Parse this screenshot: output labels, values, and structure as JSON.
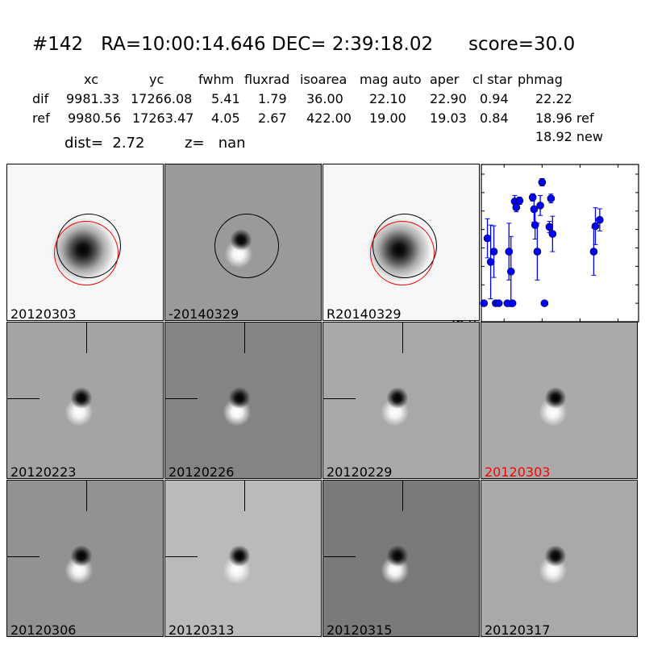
{
  "header": {
    "title": "#142   RA=10:00:14.646 DEC= 2:39:18.02      score=30.0",
    "columns": [
      "xc",
      "yc",
      "fwhm",
      "fluxrad",
      "isoarea",
      "mag auto",
      "aper",
      "cl star",
      "phmag"
    ],
    "rows": [
      {
        "label": "dif",
        "values": [
          "9981.33",
          "17266.08",
          "5.41",
          "1.79",
          "36.00",
          "22.10",
          "22.90",
          "0.94",
          "22.22"
        ]
      },
      {
        "label": "ref",
        "values": [
          "9980.56",
          "17263.47",
          "4.05",
          "2.67",
          "422.00",
          "19.00",
          "19.03",
          "0.84",
          "18.96 ref"
        ]
      }
    ],
    "extra": "18.92 new",
    "dist": "dist=  2.72",
    "z": "z=   nan"
  },
  "stamps": [
    {
      "label": "20120303",
      "bg": "#f7f7f7",
      "kind": "ref",
      "circles": true
    },
    {
      "label": "-20140329",
      "bg": "#9a9a9a",
      "kind": "dipole",
      "circles": "black"
    },
    {
      "label": "R20140329",
      "bg": "#f7f7f7",
      "kind": "ref",
      "circles": true
    },
    {
      "label": "",
      "kind": "plot"
    },
    {
      "label": "20120223",
      "bg": "#a4a4a4",
      "kind": "dipole",
      "cross": true
    },
    {
      "label": "20120226",
      "bg": "#848484",
      "kind": "dipole",
      "cross": true
    },
    {
      "label": "20120229",
      "bg": "#a8a8a8",
      "kind": "dipole",
      "cross": true
    },
    {
      "label": "20120303",
      "bg": "#aaaaaa",
      "kind": "dipole",
      "label_color": "#ff0000"
    },
    {
      "label": "20120306",
      "bg": "#929292",
      "kind": "dipole",
      "cross": true
    },
    {
      "label": "20120313",
      "bg": "#bababa",
      "kind": "dipole",
      "cross": true
    },
    {
      "label": "20120315",
      "bg": "#7a7a7a",
      "kind": "dipole",
      "cross": true
    },
    {
      "label": "20120317",
      "bg": "#a9a9a9",
      "kind": "dipole"
    }
  ],
  "chart_data": {
    "type": "scatter",
    "title": "",
    "xlabel": "",
    "ylabel": "",
    "xlim": [
      -80,
      127
    ],
    "ylim": [
      26.0,
      22.0
    ],
    "y_inverted": true,
    "grid": false,
    "xticks": [
      "-50",
      "0",
      "50",
      "100"
    ],
    "xtick_values": [
      -50,
      0,
      50,
      100
    ],
    "yticks": [
      "22.0",
      "22.5",
      "23.0",
      "23.5",
      "24.0",
      "24.5",
      "25.0",
      "25.5",
      "26.0"
    ],
    "ytick_values": [
      22,
      22.5,
      23,
      23.5,
      24,
      24.5,
      25,
      25.5,
      26
    ],
    "color": "#0000ff",
    "points": [
      [
        -76.6,
        25.5,
        0.03
      ],
      [
        -72,
        23.74,
        0.53
      ],
      [
        -67.7,
        24.38,
        1.0
      ],
      [
        -63.5,
        24.1,
        0.7
      ],
      [
        -61,
        25.5,
        0.03
      ],
      [
        -57,
        25.5,
        0.03
      ],
      [
        -45.7,
        25.5,
        0.03
      ],
      [
        -43.6,
        24.1,
        0.77
      ],
      [
        -41,
        24.64,
        0.95
      ],
      [
        -39,
        25.5,
        0.03
      ],
      [
        -36,
        22.74,
        0.16
      ],
      [
        -34,
        22.9,
        0.12
      ],
      [
        -29.7,
        22.72,
        0.1
      ],
      [
        -12.4,
        22.63,
        0.1
      ],
      [
        -10.6,
        22.95,
        0.35
      ],
      [
        -9.2,
        23.38,
        0.38
      ],
      [
        -6.3,
        24.1,
        0.77
      ],
      [
        -2.4,
        22.85,
        0.27
      ],
      [
        0,
        22.22,
        0.1
      ],
      [
        3.2,
        25.5,
        0.03
      ],
      [
        9.6,
        23.43,
        0.15
      ],
      [
        11.7,
        22.66,
        0.12
      ],
      [
        13.8,
        23.62,
        0.48
      ],
      [
        68,
        24.1,
        0.64
      ],
      [
        70.2,
        23.41,
        0.5
      ],
      [
        75.9,
        23.24,
        0.3
      ]
    ]
  }
}
